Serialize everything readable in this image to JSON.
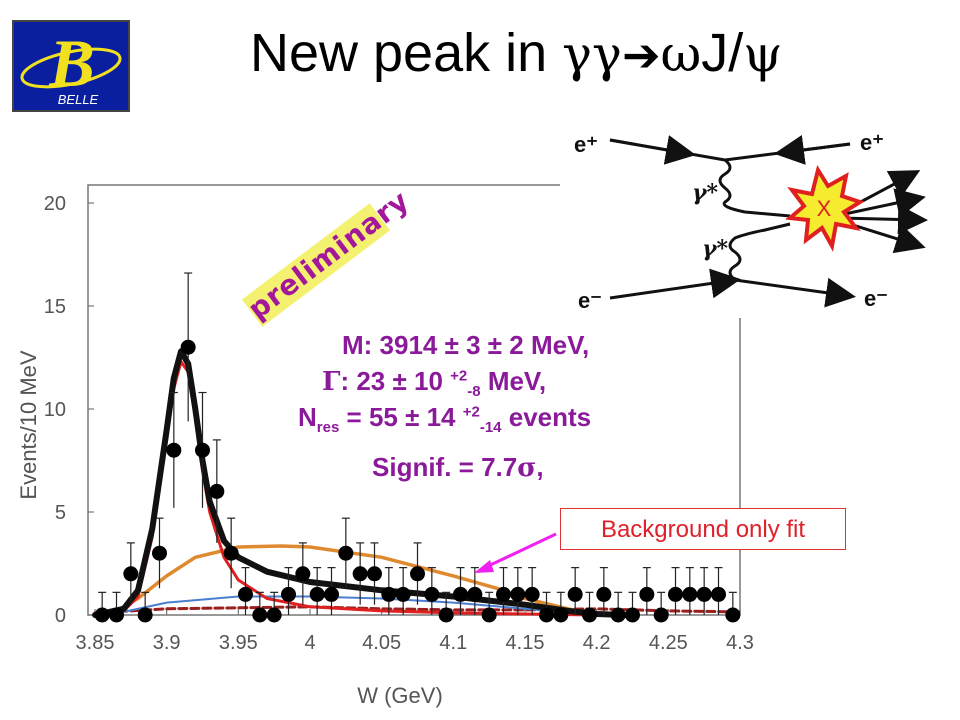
{
  "title": {
    "prefix": "New peak in ",
    "gg": "γγ",
    "arrow": "➔",
    "omega": "ω",
    "jpsi_j": "J/",
    "psi": "ψ"
  },
  "logo": {
    "letter": "B",
    "text": "BELLE"
  },
  "preliminary_label": "preliminary",
  "fit_results": {
    "mass_line": "M: 3914 ± 3 ± 2 MeV,",
    "width_gamma": "Γ",
    "width_main": ": 23 ± 10 ",
    "width_sup": "+2",
    "width_sub": "-8",
    "width_unit": " MeV,",
    "nres_n": "N",
    "nres_sub1": "res",
    "nres_main": " = 55 ± 14 ",
    "nres_sup": "+2",
    "nres_sub2": "-14",
    "nres_tail": " events",
    "signif_main": "Signif. = 7.7",
    "signif_sigma": "σ",
    "signif_tail": ","
  },
  "background_only_label": "Background only fit",
  "feynman": {
    "e_plus_left": "e⁺",
    "e_plus_right": "e⁺",
    "e_minus_left": "e⁻",
    "e_minus_right": "e⁻",
    "gamma_top": "γ*",
    "gamma_bottom": "γ*",
    "x": "X"
  },
  "chart_data": {
    "type": "scatter",
    "xlabel": "W (GeV)",
    "ylabel": "Events/10 MeV",
    "xlim": [
      3.85,
      4.3
    ],
    "ylim": [
      0,
      20
    ],
    "xticks": [
      "3.85",
      "3.9",
      "3.95",
      "4",
      "4.05",
      "4.1",
      "4.15",
      "4.2",
      "4.25",
      "4.3"
    ],
    "yticks": [
      "0",
      "5",
      "10",
      "15",
      "20"
    ],
    "grid": false,
    "series": [
      {
        "kind": "data_points",
        "x": [
          3.855,
          3.865,
          3.875,
          3.885,
          3.895,
          3.905,
          3.915,
          3.925,
          3.935,
          3.945,
          3.955,
          3.965,
          3.975,
          3.985,
          3.995,
          4.005,
          4.015,
          4.025,
          4.035,
          4.045,
          4.055,
          4.065,
          4.075,
          4.085,
          4.095,
          4.105,
          4.115,
          4.125,
          4.135,
          4.145,
          4.155,
          4.165,
          4.175,
          4.185,
          4.195,
          4.205,
          4.215,
          4.225,
          4.235,
          4.245,
          4.255,
          4.265,
          4.275,
          4.285,
          4.295
        ],
        "y": [
          0,
          0,
          2,
          0,
          3,
          8,
          13,
          8,
          6,
          3,
          1,
          0,
          0,
          1,
          2,
          1,
          1,
          3,
          2,
          2,
          1,
          1,
          2,
          1,
          0,
          1,
          1,
          0,
          1,
          1,
          1,
          0,
          0,
          1,
          0,
          1,
          0,
          0,
          1,
          0,
          1,
          1,
          1,
          1,
          0
        ],
        "err_up": [
          1.1,
          1.1,
          1.5,
          1.1,
          1.7,
          2.8,
          3.6,
          2.8,
          2.5,
          1.7,
          1.3,
          1.1,
          1.1,
          1.3,
          1.5,
          1.3,
          1.3,
          1.7,
          1.5,
          1.5,
          1.3,
          1.3,
          1.5,
          1.3,
          1.1,
          1.3,
          1.3,
          1.1,
          1.3,
          1.3,
          1.3,
          1.1,
          1.1,
          1.3,
          1.1,
          1.3,
          1.1,
          1.1,
          1.3,
          1.1,
          1.3,
          1.3,
          1.3,
          1.3,
          1.1
        ],
        "color": "#000000"
      },
      {
        "kind": "total_fit",
        "color": "#111111",
        "x": [
          3.85,
          3.87,
          3.88,
          3.89,
          3.9,
          3.905,
          3.91,
          3.915,
          3.92,
          3.925,
          3.93,
          3.94,
          3.95,
          3.97,
          4.0,
          4.05,
          4.1,
          4.15,
          4.18,
          4.2,
          4.22
        ],
        "y": [
          0,
          0.3,
          1.2,
          4.2,
          9,
          11.5,
          12.8,
          12.2,
          10,
          7.5,
          5.5,
          3.6,
          2.8,
          2.1,
          1.6,
          1.2,
          0.9,
          0.5,
          0.2,
          0.05,
          0
        ]
      },
      {
        "kind": "signal_fit",
        "color": "#e02020",
        "x": [
          3.85,
          3.87,
          3.88,
          3.89,
          3.9,
          3.905,
          3.91,
          3.915,
          3.92,
          3.925,
          3.93,
          3.94,
          3.95,
          3.97,
          4.0,
          4.05,
          4.1,
          4.2
        ],
        "y": [
          0,
          0.2,
          0.9,
          3.8,
          8.5,
          11,
          12.3,
          11.8,
          9.6,
          7,
          5,
          2.8,
          1.7,
          0.8,
          0.4,
          0.2,
          0.1,
          0
        ]
      },
      {
        "kind": "background_only_fit",
        "color": "#e08a30",
        "x": [
          3.86,
          3.88,
          3.9,
          3.92,
          3.95,
          3.98,
          4.0,
          4.05,
          4.1,
          4.13,
          4.15,
          4.18,
          4.2
        ],
        "y": [
          0,
          0.8,
          1.9,
          2.8,
          3.3,
          3.35,
          3.3,
          2.8,
          1.9,
          1.3,
          0.8,
          0.3,
          0
        ]
      },
      {
        "kind": "background_component",
        "color": "#4a7fd0",
        "x": [
          3.86,
          3.9,
          3.95,
          4.0,
          4.05,
          4.1,
          4.15,
          4.2
        ],
        "y": [
          0,
          0.6,
          0.9,
          0.9,
          0.8,
          0.6,
          0.3,
          0
        ]
      },
      {
        "kind": "sideband",
        "color": "#9a2020",
        "x": [
          3.85,
          3.9,
          3.95,
          4.0,
          4.05,
          4.1,
          4.15,
          4.2,
          4.25,
          4.3
        ],
        "y": [
          0.1,
          0.3,
          0.35,
          0.4,
          0.3,
          0.25,
          0.25,
          0.3,
          0.2,
          0.15
        ]
      }
    ]
  }
}
